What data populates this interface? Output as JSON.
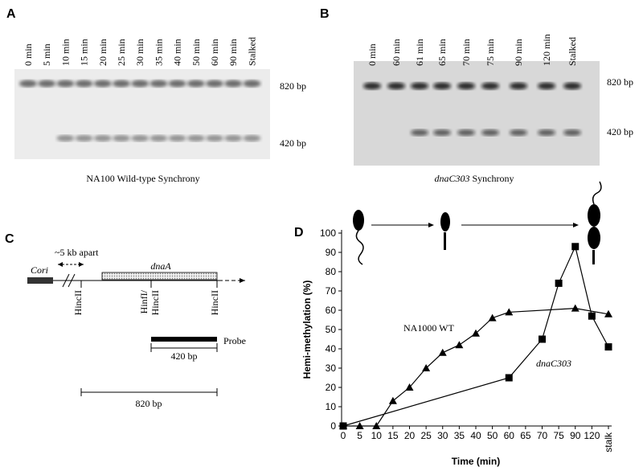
{
  "panel_a": {
    "label": "A",
    "lanes": [
      "0 min",
      "5 min",
      "10 min",
      "15 min",
      "20 min",
      "25 min",
      "30 min",
      "35 min",
      "40 min",
      "50 min",
      "60 min",
      "90 min",
      "Stalked"
    ],
    "band_upper": "820 bp",
    "band_lower": "420 bp",
    "caption": "NA100 Wild-type Synchrony"
  },
  "panel_b": {
    "label": "B",
    "lanes": [
      "0 min",
      "60 min",
      "61 min",
      "65 min",
      "70 min",
      "75 min",
      "90 min",
      "120 min",
      "Stalked"
    ],
    "band_upper": "820 bp",
    "band_lower": "420 bp",
    "caption_italic": "dnaC303",
    "caption_rest": " Synchrony"
  },
  "panel_c": {
    "label": "C",
    "distance": "~5 kb apart",
    "origin": "Cori",
    "gene": "dnaA",
    "site_1": "HincII",
    "site_2_top": "HinfI/",
    "site_2_bottom": "HincII",
    "site_3": "HincII",
    "probe": "Probe",
    "fragment_short": "420 bp",
    "fragment_long": "820 bp"
  },
  "chart_data": {
    "type": "line",
    "panel_label": "D",
    "x_label": "Time (min)",
    "y_label": "Hemi-methylation (%)",
    "categories": [
      "0",
      "5",
      "10",
      "15",
      "20",
      "25",
      "30",
      "35",
      "40",
      "50",
      "60",
      "65",
      "70",
      "75",
      "90",
      "120",
      "stalk"
    ],
    "ylim": [
      0,
      100
    ],
    "yticks": [
      0,
      10,
      20,
      30,
      40,
      50,
      60,
      70,
      80,
      90,
      100
    ],
    "series": [
      {
        "name": "NA1000 WT",
        "marker": "triangle",
        "color": "#000000",
        "x": [
          "0",
          "5",
          "10",
          "15",
          "20",
          "25",
          "30",
          "35",
          "40",
          "50",
          "60",
          "90",
          "stalk"
        ],
        "values": [
          0,
          0,
          0,
          13,
          20,
          30,
          38,
          42,
          48,
          56,
          59,
          61,
          58
        ]
      },
      {
        "name": "dnaC303",
        "marker": "square",
        "color": "#000000",
        "x": [
          "0",
          "60",
          "70",
          "75",
          "90",
          "120",
          "stalk"
        ],
        "values": [
          0,
          25,
          45,
          74,
          93,
          57,
          41
        ]
      }
    ]
  }
}
